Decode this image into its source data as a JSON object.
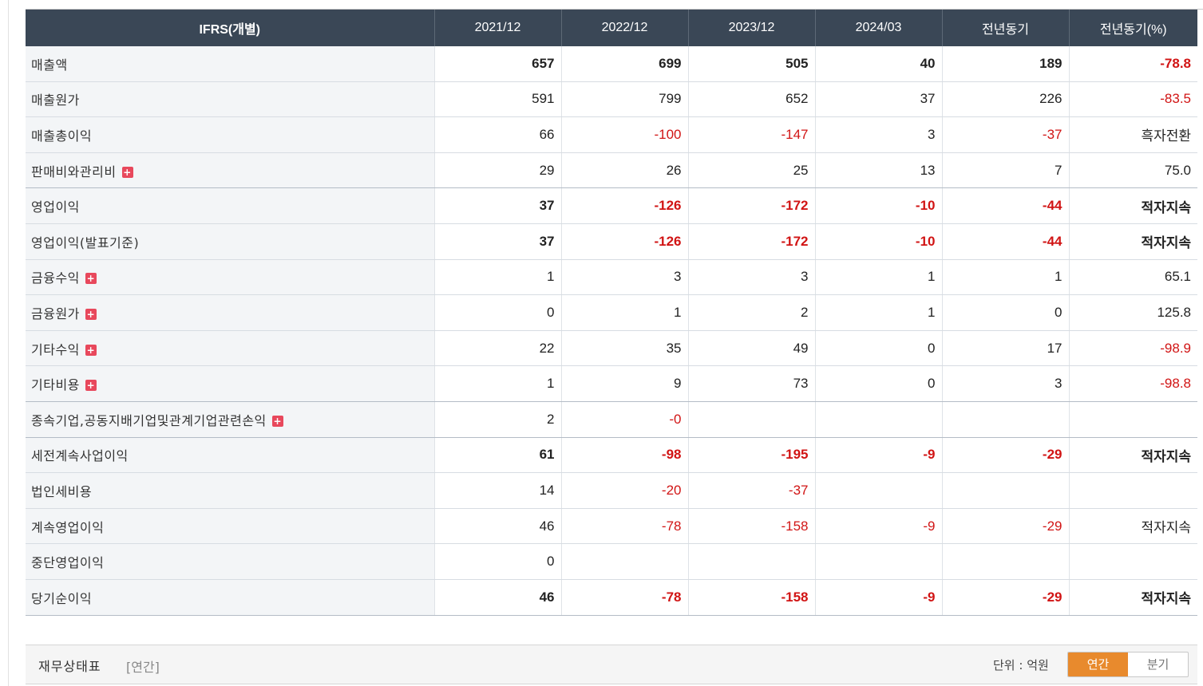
{
  "table": {
    "headers": [
      "IFRS(개별)",
      "2021/12",
      "2022/12",
      "2023/12",
      "2024/03",
      "전년동기",
      "전년동기(%)"
    ],
    "rows": [
      {
        "label": "매출액",
        "expand": false,
        "major": true,
        "values": [
          "657",
          "699",
          "505",
          "40",
          "189",
          "-78.8"
        ]
      },
      {
        "label": "매출원가",
        "expand": false,
        "major": false,
        "values": [
          "591",
          "799",
          "652",
          "37",
          "226",
          "-83.5"
        ]
      },
      {
        "label": "매출총이익",
        "expand": false,
        "major": false,
        "values": [
          "66",
          "-100",
          "-147",
          "3",
          "-37",
          "흑자전환"
        ]
      },
      {
        "label": "판매비와관리비",
        "expand": true,
        "major": false,
        "values": [
          "29",
          "26",
          "25",
          "13",
          "7",
          "75.0"
        ]
      },
      {
        "label": "영업이익",
        "expand": false,
        "major": true,
        "values": [
          "37",
          "-126",
          "-172",
          "-10",
          "-44",
          "적자지속"
        ]
      },
      {
        "label": "영업이익(발표기준)",
        "expand": false,
        "major": true,
        "values": [
          "37",
          "-126",
          "-172",
          "-10",
          "-44",
          "적자지속"
        ]
      },
      {
        "label": "금융수익",
        "expand": true,
        "major": false,
        "values": [
          "1",
          "3",
          "3",
          "1",
          "1",
          "65.1"
        ]
      },
      {
        "label": "금융원가",
        "expand": true,
        "major": false,
        "values": [
          "0",
          "1",
          "2",
          "1",
          "0",
          "125.8"
        ]
      },
      {
        "label": "기타수익",
        "expand": true,
        "major": false,
        "values": [
          "22",
          "35",
          "49",
          "0",
          "17",
          "-98.9"
        ]
      },
      {
        "label": "기타비용",
        "expand": true,
        "major": false,
        "values": [
          "1",
          "9",
          "73",
          "0",
          "3",
          "-98.8"
        ]
      },
      {
        "label": "종속기업,공동지배기업및관계기업관련손익",
        "expand": true,
        "major": false,
        "values": [
          "2",
          "-0",
          "",
          "",
          "",
          ""
        ]
      },
      {
        "label": "세전계속사업이익",
        "expand": false,
        "major": true,
        "values": [
          "61",
          "-98",
          "-195",
          "-9",
          "-29",
          "적자지속"
        ]
      },
      {
        "label": "법인세비용",
        "expand": false,
        "major": false,
        "values": [
          "14",
          "-20",
          "-37",
          "",
          "",
          ""
        ]
      },
      {
        "label": "계속영업이익",
        "expand": false,
        "major": false,
        "values": [
          "46",
          "-78",
          "-158",
          "-9",
          "-29",
          "적자지속"
        ]
      },
      {
        "label": "중단영업이익",
        "expand": false,
        "major": false,
        "values": [
          "0",
          "",
          "",
          "",
          "",
          ""
        ]
      },
      {
        "label": "당기순이익",
        "expand": false,
        "major": true,
        "values": [
          "46",
          "-78",
          "-158",
          "-9",
          "-29",
          "적자지속"
        ]
      }
    ]
  },
  "expand_icon": "plus-icon",
  "colors": {
    "header_bg": "#3a4756",
    "negative": "#d11414",
    "active_tab": "#e88a2d"
  },
  "footer": {
    "title": "재무상태표",
    "subtitle": "[연간]",
    "unit": "단위 : 억원",
    "tabs": [
      "연간",
      "분기"
    ],
    "active_tab": "연간"
  }
}
